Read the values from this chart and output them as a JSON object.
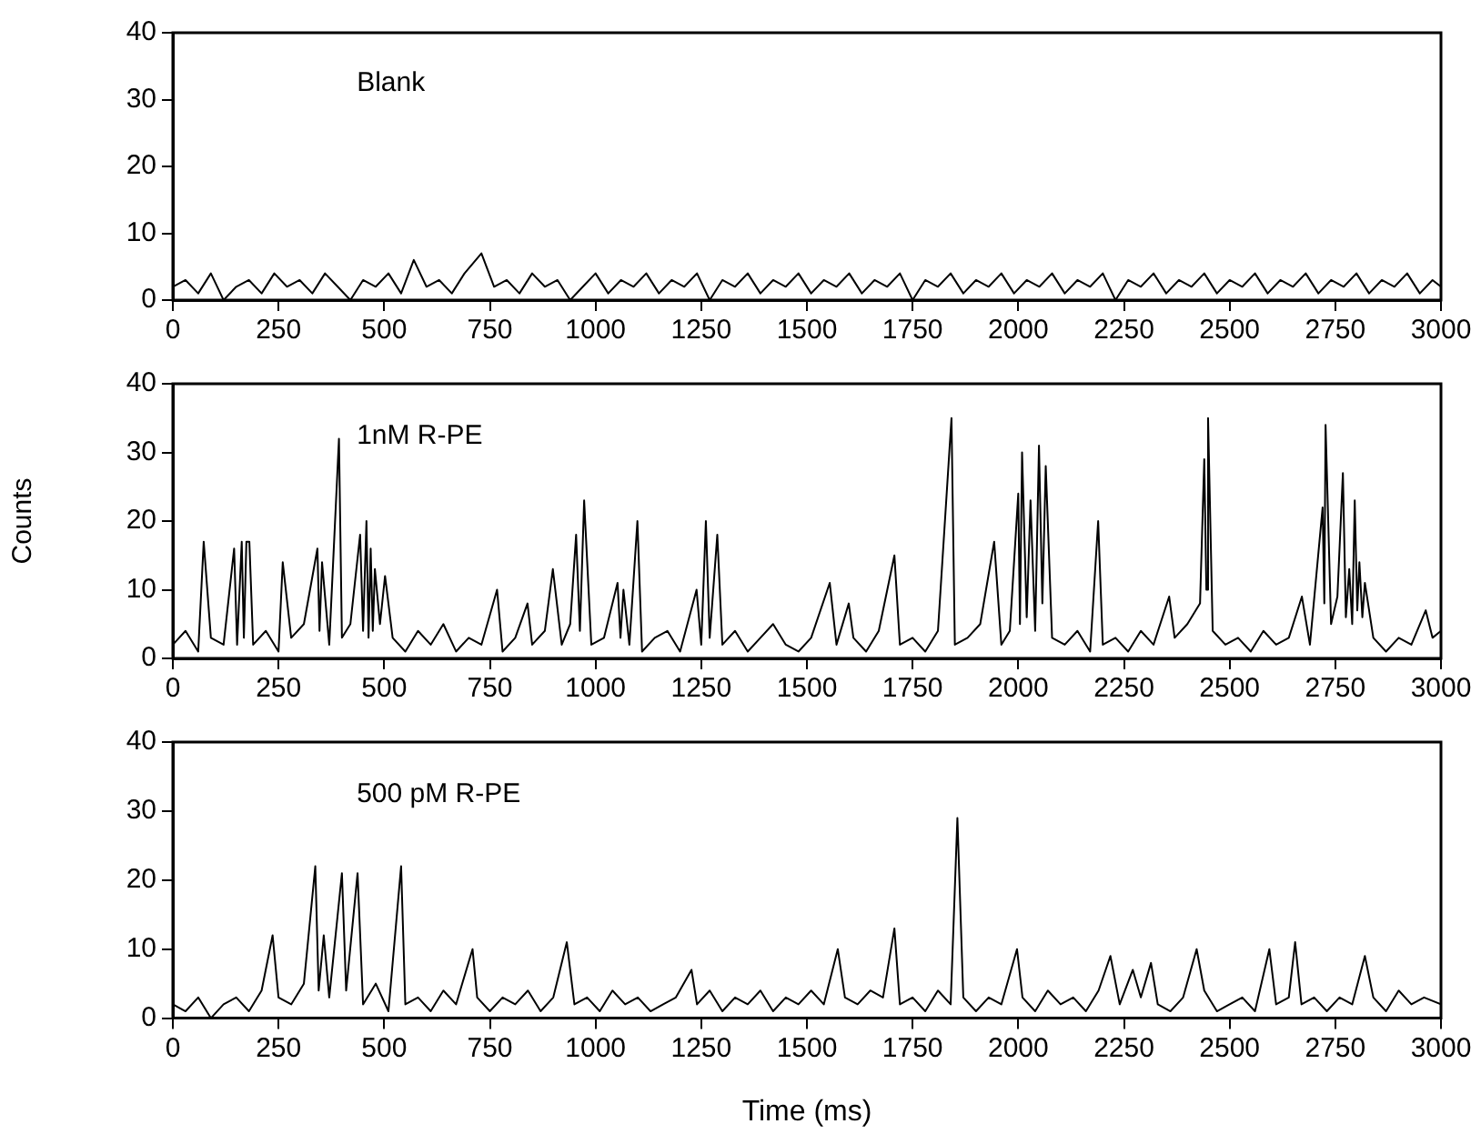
{
  "chart_data": [
    {
      "type": "line",
      "annotations": [
        "Blank"
      ],
      "xlim": [
        0,
        3000
      ],
      "xticks": [
        0,
        250,
        500,
        750,
        1000,
        1250,
        1500,
        1750,
        2000,
        2250,
        2500,
        2750,
        3000
      ],
      "ylim": [
        0,
        40
      ],
      "yticks": [
        0,
        10,
        20,
        30,
        40
      ],
      "grid": false,
      "series": [
        {
          "color": "#000000",
          "x": [
            0,
            30,
            60,
            90,
            120,
            150,
            180,
            210,
            240,
            270,
            300,
            330,
            360,
            390,
            420,
            450,
            480,
            510,
            540,
            570,
            600,
            630,
            660,
            690,
            730,
            760,
            790,
            820,
            850,
            880,
            910,
            940,
            970,
            1000,
            1030,
            1060,
            1090,
            1120,
            1150,
            1180,
            1210,
            1240,
            1270,
            1300,
            1330,
            1360,
            1390,
            1420,
            1450,
            1480,
            1510,
            1540,
            1570,
            1600,
            1630,
            1660,
            1690,
            1720,
            1750,
            1780,
            1810,
            1840,
            1870,
            1900,
            1930,
            1960,
            1990,
            2020,
            2050,
            2080,
            2110,
            2140,
            2170,
            2200,
            2230,
            2260,
            2290,
            2320,
            2350,
            2380,
            2410,
            2440,
            2470,
            2500,
            2530,
            2560,
            2590,
            2620,
            2650,
            2680,
            2710,
            2740,
            2770,
            2800,
            2830,
            2860,
            2890,
            2920,
            2950,
            2980,
            3000
          ],
          "values": [
            2,
            3,
            1,
            4,
            0,
            2,
            3,
            1,
            4,
            2,
            3,
            1,
            4,
            2,
            0,
            3,
            2,
            4,
            1,
            6,
            2,
            3,
            1,
            4,
            7,
            2,
            3,
            1,
            4,
            2,
            3,
            0,
            2,
            4,
            1,
            3,
            2,
            4,
            1,
            3,
            2,
            4,
            0,
            3,
            2,
            4,
            1,
            3,
            2,
            4,
            1,
            3,
            2,
            4,
            1,
            3,
            2,
            4,
            0,
            3,
            2,
            4,
            1,
            3,
            2,
            4,
            1,
            3,
            2,
            4,
            1,
            3,
            2,
            4,
            0,
            3,
            2,
            4,
            1,
            3,
            2,
            4,
            1,
            3,
            2,
            4,
            1,
            3,
            2,
            4,
            1,
            3,
            2,
            4,
            1,
            3,
            2,
            4,
            1,
            3,
            2
          ]
        }
      ]
    },
    {
      "type": "line",
      "ylabel": "Counts",
      "annotations": [
        "1nM R-PE"
      ],
      "xlim": [
        0,
        3000
      ],
      "xticks": [
        0,
        250,
        500,
        750,
        1000,
        1250,
        1500,
        1750,
        2000,
        2250,
        2500,
        2750,
        3000
      ],
      "ylim": [
        0,
        40
      ],
      "yticks": [
        0,
        10,
        20,
        30,
        40
      ],
      "grid": false,
      "series": [
        {
          "color": "#000000",
          "x": [
            0,
            30,
            60,
            73,
            90,
            120,
            145,
            152,
            163,
            168,
            174,
            181,
            190,
            220,
            250,
            260,
            280,
            310,
            342,
            347,
            353,
            370,
            393,
            400,
            420,
            443,
            450,
            458,
            463,
            468,
            473,
            478,
            490,
            502,
            520,
            550,
            580,
            610,
            640,
            670,
            700,
            730,
            767,
            780,
            810,
            839,
            850,
            880,
            899,
            920,
            940,
            954,
            963,
            973,
            990,
            1020,
            1052,
            1059,
            1066,
            1080,
            1099,
            1110,
            1140,
            1170,
            1200,
            1239,
            1250,
            1261,
            1270,
            1288,
            1300,
            1330,
            1360,
            1390,
            1420,
            1450,
            1480,
            1510,
            1554,
            1570,
            1599,
            1610,
            1640,
            1670,
            1707,
            1720,
            1750,
            1780,
            1810,
            1842,
            1850,
            1880,
            1910,
            1943,
            1960,
            1980,
            2000,
            2004,
            2009,
            2020,
            2029,
            2040,
            2049,
            2057,
            2065,
            2080,
            2110,
            2140,
            2170,
            2189,
            2200,
            2230,
            2260,
            2290,
            2320,
            2357,
            2370,
            2400,
            2430,
            2440,
            2445,
            2449,
            2460,
            2490,
            2520,
            2550,
            2580,
            2610,
            2640,
            2671,
            2690,
            2720,
            2724,
            2727,
            2740,
            2755,
            2768,
            2775,
            2783,
            2790,
            2796,
            2802,
            2807,
            2814,
            2820,
            2840,
            2870,
            2900,
            2930,
            2964,
            2980,
            3000
          ],
          "values": [
            2,
            4,
            1,
            17,
            3,
            2,
            16,
            2,
            17,
            3,
            17,
            17,
            2,
            4,
            1,
            14,
            3,
            5,
            16,
            4,
            14,
            2,
            32,
            3,
            5,
            18,
            4,
            20,
            3,
            16,
            4,
            13,
            5,
            12,
            3,
            1,
            4,
            2,
            5,
            1,
            3,
            2,
            10,
            1,
            3,
            8,
            2,
            4,
            13,
            2,
            5,
            18,
            4,
            23,
            2,
            3,
            11,
            3,
            10,
            2,
            20,
            1,
            3,
            4,
            1,
            10,
            2,
            20,
            3,
            18,
            2,
            4,
            1,
            3,
            5,
            2,
            1,
            3,
            11,
            2,
            8,
            3,
            1,
            4,
            15,
            2,
            3,
            1,
            4,
            35,
            2,
            3,
            5,
            17,
            2,
            4,
            24,
            5,
            30,
            6,
            23,
            4,
            31,
            8,
            28,
            3,
            2,
            4,
            1,
            20,
            2,
            3,
            1,
            4,
            2,
            9,
            3,
            5,
            8,
            29,
            10,
            35,
            4,
            2,
            3,
            1,
            4,
            2,
            3,
            9,
            2,
            22,
            8,
            34,
            5,
            9,
            27,
            6,
            13,
            5,
            23,
            7,
            14,
            6,
            11,
            3,
            1,
            3,
            2,
            7,
            3,
            4
          ]
        }
      ]
    },
    {
      "type": "line",
      "xlabel": "Time (ms)",
      "annotations": [
        "500 pM R-PE"
      ],
      "xlim": [
        0,
        3000
      ],
      "xticks": [
        0,
        250,
        500,
        750,
        1000,
        1250,
        1500,
        1750,
        2000,
        2250,
        2500,
        2750,
        3000
      ],
      "ylim": [
        0,
        40
      ],
      "yticks": [
        0,
        10,
        20,
        30,
        40
      ],
      "grid": false,
      "series": [
        {
          "color": "#000000",
          "x": [
            0,
            30,
            60,
            90,
            120,
            150,
            180,
            210,
            236,
            250,
            280,
            310,
            337,
            345,
            357,
            370,
            400,
            410,
            437,
            450,
            480,
            510,
            540,
            550,
            580,
            610,
            640,
            670,
            709,
            720,
            750,
            780,
            810,
            840,
            870,
            900,
            932,
            950,
            980,
            1010,
            1040,
            1070,
            1100,
            1130,
            1160,
            1190,
            1227,
            1240,
            1270,
            1300,
            1330,
            1360,
            1390,
            1420,
            1450,
            1480,
            1510,
            1540,
            1573,
            1590,
            1620,
            1650,
            1680,
            1707,
            1720,
            1750,
            1780,
            1810,
            1840,
            1856,
            1870,
            1900,
            1930,
            1960,
            1997,
            2010,
            2040,
            2070,
            2100,
            2130,
            2160,
            2190,
            2218,
            2240,
            2271,
            2290,
            2314,
            2330,
            2360,
            2390,
            2422,
            2440,
            2470,
            2500,
            2530,
            2560,
            2594,
            2610,
            2640,
            2655,
            2670,
            2700,
            2730,
            2760,
            2790,
            2820,
            2840,
            2870,
            2900,
            2930,
            2960,
            3000
          ],
          "values": [
            2,
            1,
            3,
            0,
            2,
            3,
            1,
            4,
            12,
            3,
            2,
            5,
            22,
            4,
            12,
            3,
            21,
            4,
            21,
            2,
            5,
            1,
            22,
            2,
            3,
            1,
            4,
            2,
            10,
            3,
            1,
            3,
            2,
            4,
            1,
            3,
            11,
            2,
            3,
            1,
            4,
            2,
            3,
            1,
            2,
            3,
            7,
            2,
            4,
            1,
            3,
            2,
            4,
            1,
            3,
            2,
            4,
            2,
            10,
            3,
            2,
            4,
            3,
            13,
            2,
            3,
            1,
            4,
            2,
            29,
            3,
            1,
            3,
            2,
            10,
            3,
            1,
            4,
            2,
            3,
            1,
            4,
            9,
            2,
            7,
            3,
            8,
            2,
            1,
            3,
            10,
            4,
            1,
            2,
            3,
            1,
            10,
            2,
            3,
            11,
            2,
            3,
            1,
            3,
            2,
            9,
            3,
            1,
            4,
            2,
            3,
            2
          ]
        }
      ]
    }
  ]
}
